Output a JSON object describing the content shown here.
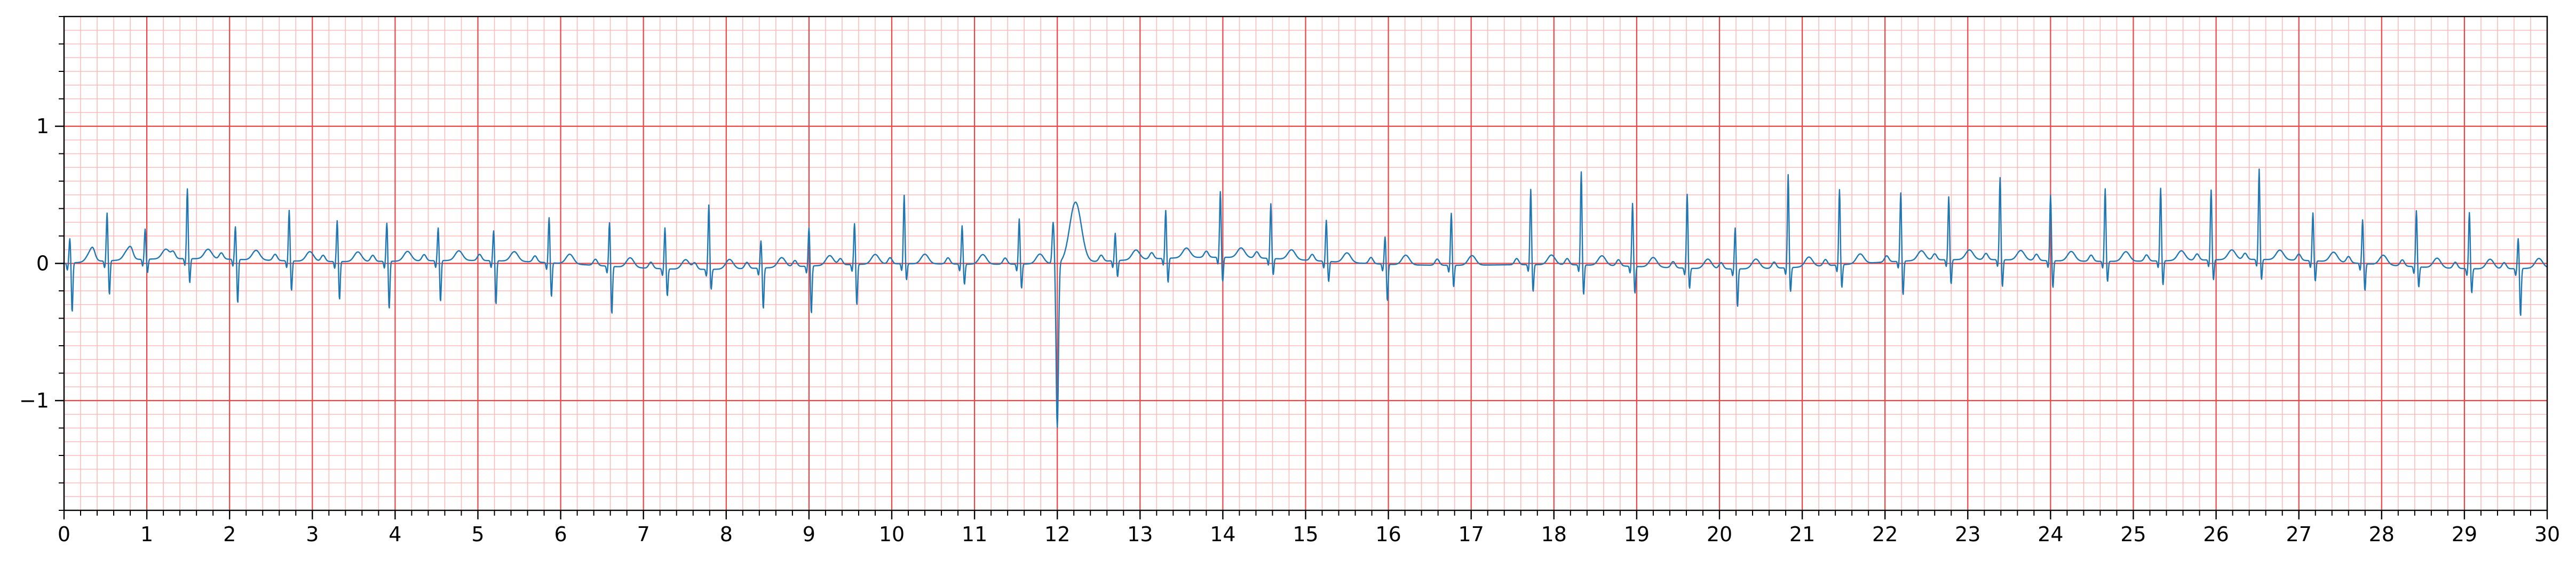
{
  "chart_data": {
    "type": "line",
    "title": "",
    "xlabel": "",
    "ylabel": "",
    "xlim": [
      0,
      30
    ],
    "ylim": [
      -1.8,
      1.8
    ],
    "x_ticks": [
      0,
      1,
      2,
      3,
      4,
      5,
      6,
      7,
      8,
      9,
      10,
      11,
      12,
      13,
      14,
      15,
      16,
      17,
      18,
      19,
      20,
      21,
      22,
      23,
      24,
      25,
      26,
      27,
      28,
      29,
      30
    ],
    "x_tick_labels": [
      "0",
      "1",
      "2",
      "3",
      "4",
      "5",
      "6",
      "7",
      "8",
      "9",
      "10",
      "11",
      "12",
      "13",
      "14",
      "15",
      "16",
      "17",
      "18",
      "19",
      "20",
      "21",
      "22",
      "23",
      "24",
      "25",
      "26",
      "27",
      "28",
      "29",
      "30"
    ],
    "y_ticks": [
      -1,
      0,
      1
    ],
    "y_tick_labels": [
      "−1",
      "0",
      "1"
    ],
    "grid": {
      "major": true,
      "minor": true,
      "major_x_step": 1,
      "minor_x_step": 0.2,
      "major_y_step": 1,
      "minor_y_step": 0.1
    },
    "colors": {
      "trace": "#1f77b4",
      "major_grid": "#ee4444",
      "minor_grid": "#ffbbbb",
      "axis": "#000000"
    },
    "series": [
      {
        "sample_interval_s": 0.005,
        "beats": [
          [
            0.07,
            0.18,
            -0.36
          ],
          [
            0.52,
            0.35,
            -0.25
          ],
          [
            0.98,
            0.22,
            -0.1
          ],
          [
            1.49,
            0.51,
            -0.18
          ],
          [
            2.07,
            0.24,
            -0.32
          ],
          [
            2.72,
            0.37,
            -0.22
          ],
          [
            3.3,
            0.3,
            -0.28
          ],
          [
            3.9,
            0.28,
            -0.35
          ],
          [
            4.52,
            0.24,
            -0.3
          ],
          [
            5.19,
            0.22,
            -0.32
          ],
          [
            5.86,
            0.33,
            -0.25
          ],
          [
            6.59,
            0.32,
            -0.35
          ],
          [
            7.26,
            0.3,
            -0.2
          ],
          [
            7.79,
            0.47,
            -0.15
          ],
          [
            8.42,
            0.2,
            -0.3
          ],
          [
            9.0,
            0.28,
            -0.35
          ],
          [
            9.55,
            0.3,
            -0.3
          ],
          [
            10.15,
            0.5,
            -0.12
          ],
          [
            10.85,
            0.28,
            -0.15
          ],
          [
            11.54,
            0.33,
            -0.18
          ],
          [
            12.0,
            0.3,
            -1.2
          ],
          [
            12.7,
            0.2,
            -0.12
          ],
          [
            13.31,
            0.35,
            -0.18
          ],
          [
            13.97,
            0.48,
            -0.18
          ],
          [
            14.58,
            0.4,
            -0.12
          ],
          [
            15.25,
            0.3,
            -0.15
          ],
          [
            15.96,
            0.2,
            -0.27
          ],
          [
            16.76,
            0.38,
            -0.16
          ],
          [
            17.72,
            0.55,
            -0.2
          ],
          [
            18.33,
            0.68,
            -0.22
          ],
          [
            18.95,
            0.46,
            -0.2
          ],
          [
            19.61,
            0.54,
            -0.15
          ],
          [
            20.19,
            0.3,
            -0.28
          ],
          [
            20.83,
            0.68,
            -0.18
          ],
          [
            21.45,
            0.55,
            -0.17
          ],
          [
            22.19,
            0.5,
            -0.25
          ],
          [
            22.77,
            0.46,
            -0.18
          ],
          [
            23.39,
            0.6,
            -0.2
          ],
          [
            24.0,
            0.48,
            -0.2
          ],
          [
            24.66,
            0.53,
            -0.15
          ],
          [
            25.33,
            0.53,
            -0.18
          ],
          [
            25.94,
            0.51,
            -0.15
          ],
          [
            26.52,
            0.66,
            -0.15
          ],
          [
            27.17,
            0.35,
            -0.15
          ],
          [
            27.77,
            0.32,
            -0.2
          ],
          [
            28.42,
            0.41,
            -0.15
          ],
          [
            29.06,
            0.41,
            -0.18
          ],
          [
            29.65,
            0.22,
            -0.35
          ]
        ]
      }
    ]
  }
}
